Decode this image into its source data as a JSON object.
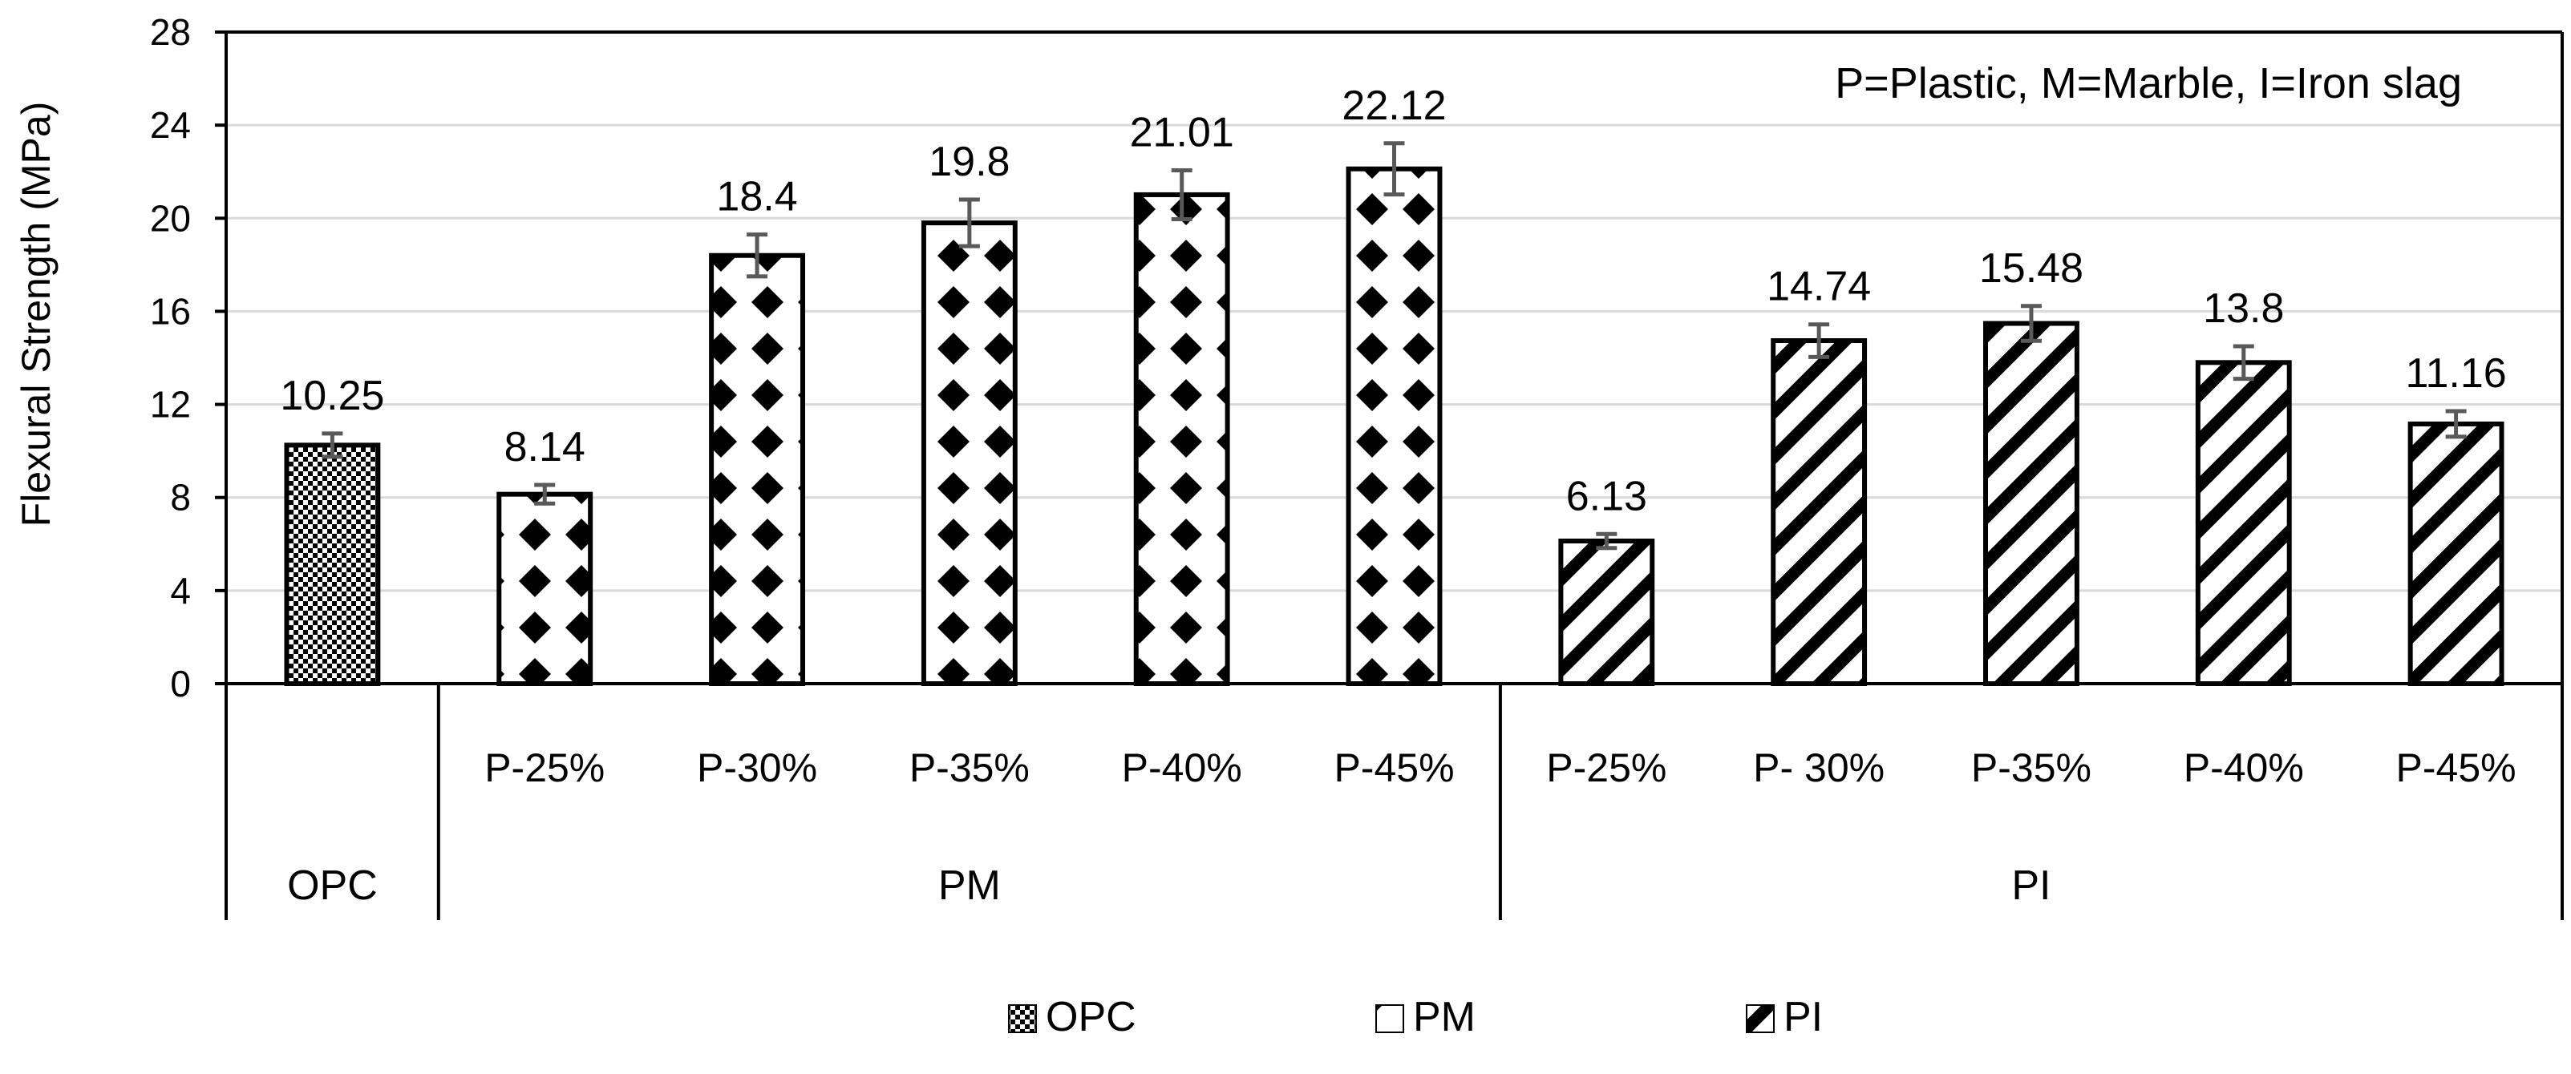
{
  "chart_data": {
    "type": "bar",
    "title": "",
    "annotation": "P=Plastic, M=Marble, I=Iron slag",
    "xlabel": "",
    "ylabel": "Flexural Strength (MPa)",
    "ylim": [
      0,
      28
    ],
    "yticks": [
      0,
      4,
      8,
      12,
      16,
      20,
      24,
      28
    ],
    "grid": true,
    "legend_position": "bottom",
    "groups": [
      {
        "name": "OPC",
        "series": "OPC",
        "bars": [
          {
            "category": "",
            "value": 10.25,
            "value_label": "10.25",
            "error": 0.5
          }
        ]
      },
      {
        "name": "PM",
        "series": "PM",
        "bars": [
          {
            "category": "P-25%",
            "value": 8.14,
            "value_label": "8.14",
            "error": 0.4
          },
          {
            "category": "P-30%",
            "value": 18.4,
            "value_label": "18.4",
            "error": 0.9
          },
          {
            "category": "P-35%",
            "value": 19.8,
            "value_label": "19.8",
            "error": 1.0
          },
          {
            "category": "P-40%",
            "value": 21.01,
            "value_label": "21.01",
            "error": 1.05
          },
          {
            "category": "P-45%",
            "value": 22.12,
            "value_label": "22.12",
            "error": 1.1
          }
        ]
      },
      {
        "name": "PI",
        "series": "PI",
        "bars": [
          {
            "category": "P-25%",
            "value": 6.13,
            "value_label": "6.13",
            "error": 0.3
          },
          {
            "category": "P- 30%",
            "value": 14.74,
            "value_label": "14.74",
            "error": 0.7
          },
          {
            "category": "P-35%",
            "value": 15.48,
            "value_label": "15.48",
            "error": 0.75
          },
          {
            "category": "P-40%",
            "value": 13.8,
            "value_label": "13.8",
            "error": 0.7
          },
          {
            "category": "P-45%",
            "value": 11.16,
            "value_label": "11.16",
            "error": 0.55
          }
        ]
      }
    ],
    "legend": [
      {
        "name": "OPC",
        "pattern": "checker"
      },
      {
        "name": "PM",
        "pattern": "diamond"
      },
      {
        "name": "PI",
        "pattern": "diagonal"
      }
    ]
  },
  "colors": {
    "bar_fill": "#000000",
    "bar_background": "#ffffff",
    "grid": "#d9d9d9",
    "error_bar": "#595959",
    "axis": "#000000"
  }
}
